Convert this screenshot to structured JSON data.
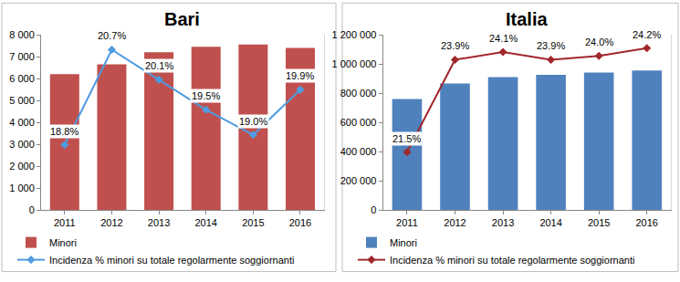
{
  "chart_data": [
    {
      "type": "bar",
      "title": "Bari",
      "categories": [
        "2011",
        "2012",
        "2013",
        "2014",
        "2015",
        "2016"
      ],
      "series": [
        {
          "name": "Minori",
          "type": "bar",
          "color": "#c0504d",
          "values": [
            6200,
            6650,
            7200,
            7450,
            7550,
            7400
          ]
        },
        {
          "name": "Incidenza % minori su totale regolarmente soggiornanti",
          "type": "line",
          "axis": "y2",
          "color": "#4f9be0",
          "marker": "diamond",
          "values": [
            18.8,
            20.7,
            20.1,
            19.5,
            19.0,
            19.9
          ],
          "value_labels": [
            "18.8%",
            "20.7%",
            "20.1%",
            "19.5%",
            "19.0%",
            "19.9%"
          ]
        }
      ],
      "ylim": [
        0,
        8000
      ],
      "yticks": [
        0,
        {
          "value": 1000,
          "label": "1 000"
        },
        {
          "value": 2000,
          "label": "2 000"
        },
        {
          "value": 3000,
          "label": "3 000"
        },
        {
          "value": 4000,
          "label": "4 000"
        },
        {
          "value": 5000,
          "label": "5 000"
        },
        {
          "value": 6000,
          "label": "6 000"
        },
        {
          "value": 7000,
          "label": "7 000"
        },
        {
          "value": 8000,
          "label": "8 000"
        }
      ],
      "y2lim": [
        17.5,
        21
      ],
      "grid": false,
      "legend": "bottom",
      "data_labels": true
    },
    {
      "type": "bar",
      "title": "Italia",
      "categories": [
        "2011",
        "2012",
        "2013",
        "2014",
        "2015",
        "2016"
      ],
      "series": [
        {
          "name": "Minori",
          "type": "bar",
          "color": "#4f81bd",
          "values": [
            760000,
            865000,
            910000,
            925000,
            940000,
            955000
          ]
        },
        {
          "name": "Incidenza % minori su totale regolarmente soggiornanti",
          "type": "line",
          "axis": "y2",
          "color": "#a0282d",
          "marker": "diamond",
          "values": [
            21.5,
            23.9,
            24.1,
            23.9,
            24.0,
            24.2
          ],
          "value_labels": [
            "21.5%",
            "23.9%",
            "24.1%",
            "23.9%",
            "24.0%",
            "24.2%"
          ]
        }
      ],
      "ylim": [
        0,
        1200000
      ],
      "yticks": [
        0,
        {
          "value": 200000,
          "label": "200 000"
        },
        {
          "value": 400000,
          "label": "400 000"
        },
        {
          "value": 600000,
          "label": "600 000"
        },
        {
          "value": 800000,
          "label": "800 000"
        },
        {
          "value": 1000000,
          "label": "1 000 000"
        },
        {
          "value": 1200000,
          "label": "1 200 000"
        }
      ],
      "y2lim": [
        20,
        24.55
      ],
      "grid": false,
      "legend": "bottom",
      "data_labels": true
    }
  ]
}
